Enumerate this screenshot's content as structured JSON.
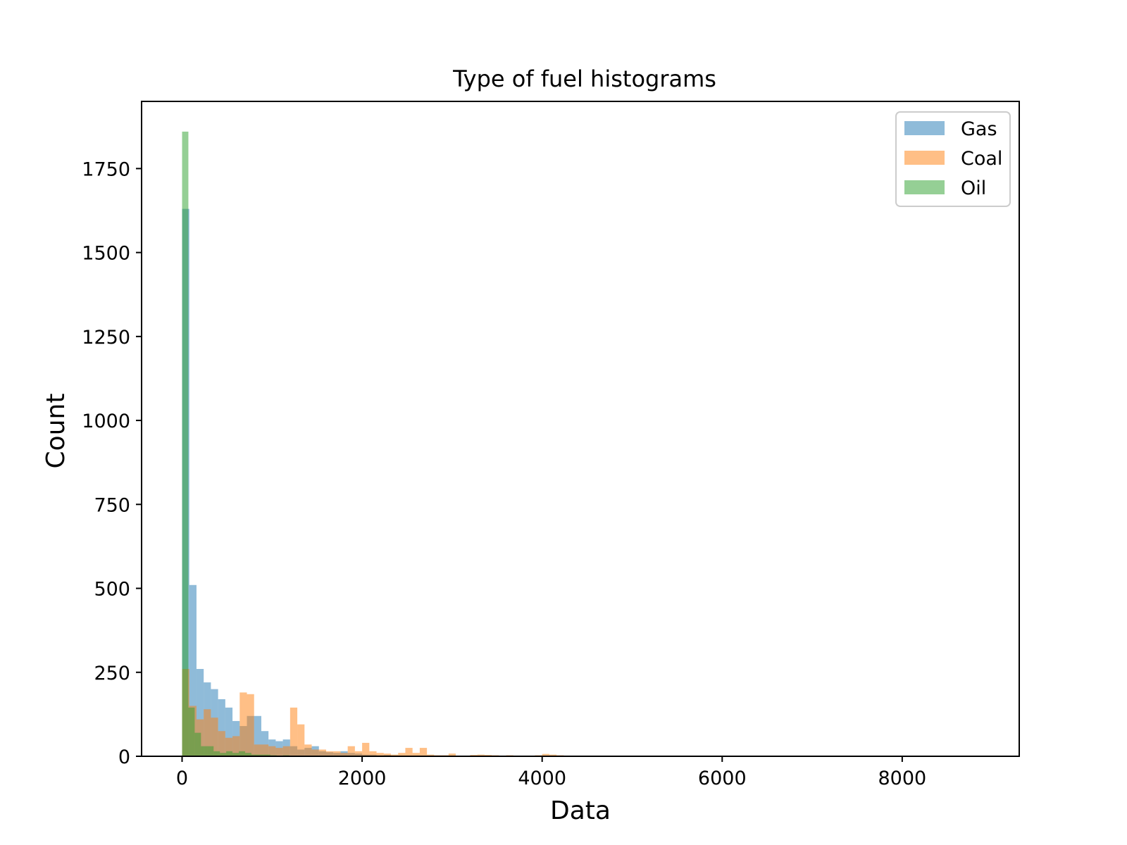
{
  "chart_data": {
    "type": "bar",
    "title": "Type of fuel histograms",
    "xlabel": "Data",
    "ylabel": "Count",
    "xlim": [
      -450,
      9300
    ],
    "ylim": [
      0,
      1950
    ],
    "xticks": [
      0,
      2000,
      4000,
      6000,
      8000
    ],
    "yticks": [
      0,
      250,
      500,
      750,
      1000,
      1250,
      1500,
      1750
    ],
    "grid": false,
    "legend_position": "top-right",
    "bar_opacity": 0.5,
    "series": [
      {
        "name": "Gas",
        "color": "#1f77b4",
        "bin_edges": [
          0,
          80,
          160,
          240,
          320,
          400,
          480,
          560,
          640,
          720,
          800,
          880,
          960,
          1040,
          1120,
          1200,
          1280,
          1360,
          1440,
          1520,
          1600,
          1680,
          1760,
          1840,
          1920,
          2000,
          2080,
          2160,
          2240,
          2320
        ],
        "counts": [
          1630,
          510,
          260,
          220,
          200,
          170,
          145,
          105,
          90,
          120,
          120,
          75,
          50,
          45,
          50,
          30,
          20,
          25,
          30,
          15,
          12,
          10,
          15,
          10,
          8,
          5,
          5,
          3,
          4
        ]
      },
      {
        "name": "Coal",
        "color": "#ff7f0e",
        "bin_edges": [
          0,
          80,
          160,
          240,
          320,
          400,
          480,
          560,
          640,
          720,
          800,
          880,
          960,
          1040,
          1120,
          1200,
          1280,
          1360,
          1440,
          1520,
          1600,
          1680,
          1760,
          1840,
          1920,
          2000,
          2080,
          2160,
          2240,
          2320,
          2400,
          2480,
          2560,
          2640,
          2720,
          2800,
          2880,
          2960,
          3040,
          3120,
          3200,
          3280,
          3360,
          3440,
          3520,
          3600,
          3680,
          3760,
          3840,
          3920,
          4000,
          4080,
          4160,
          4240
        ],
        "counts": [
          260,
          150,
          110,
          140,
          115,
          75,
          55,
          60,
          190,
          185,
          35,
          35,
          30,
          25,
          30,
          145,
          95,
          35,
          20,
          20,
          15,
          15,
          10,
          30,
          15,
          40,
          15,
          10,
          8,
          5,
          10,
          25,
          10,
          25,
          5,
          3,
          3,
          8,
          2,
          2,
          4,
          5,
          4,
          3,
          2,
          3,
          2,
          2,
          2,
          3,
          7,
          5,
          3
        ]
      },
      {
        "name": "Oil",
        "color": "#2ca02c",
        "bin_edges": [
          0,
          70,
          140,
          210,
          280,
          350,
          420,
          490,
          560,
          630,
          700,
          770,
          840,
          910,
          980,
          1050,
          1120,
          1190,
          1260,
          1330,
          1400,
          1470
        ],
        "counts": [
          1860,
          145,
          70,
          30,
          30,
          15,
          10,
          15,
          10,
          15,
          10,
          5,
          5,
          5,
          3,
          2,
          3,
          2,
          2,
          1,
          1
        ]
      }
    ]
  }
}
